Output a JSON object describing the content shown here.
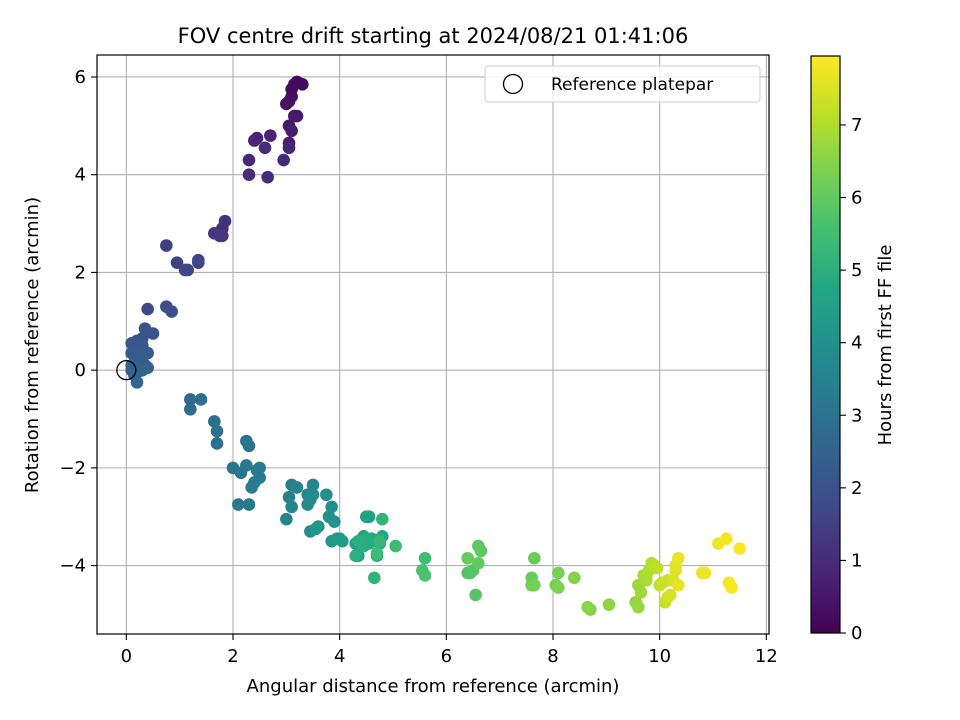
{
  "chart_data": {
    "type": "scatter",
    "title": "FOV centre drift starting at 2024/08/21 01:41:06",
    "xlabel": "Angular distance from reference (arcmin)",
    "ylabel": "Rotation from reference (arcmin)",
    "xlim": [
      -0.55,
      12.05
    ],
    "ylim": [
      -5.4,
      6.45
    ],
    "xticks": [
      0,
      2,
      4,
      6,
      8,
      10,
      12
    ],
    "yticks": [
      -4,
      -2,
      0,
      2,
      4,
      6
    ],
    "xtick_labels": [
      "0",
      "2",
      "4",
      "6",
      "8",
      "10",
      "12"
    ],
    "ytick_labels": [
      "−4",
      "−2",
      "0",
      "2",
      "4",
      "6"
    ],
    "grid": true,
    "legend": {
      "position": "top-right",
      "entries": [
        "Reference platepar"
      ]
    },
    "reference_point": {
      "x": 0,
      "y": 0,
      "marker": "open-circle"
    },
    "colorbar": {
      "label": "Hours from first FF file",
      "range": [
        0,
        7.95
      ],
      "ticks": [
        0,
        1,
        2,
        3,
        4,
        5,
        6,
        7
      ],
      "tick_labels": [
        "0",
        "1",
        "2",
        "3",
        "4",
        "5",
        "6",
        "7"
      ],
      "colormap": "viridis"
    },
    "series": [
      {
        "x": [
          3.2,
          3.15,
          3.3,
          3.1,
          3.1,
          3.05,
          3.0,
          3.15,
          3.05,
          3.2,
          3.1,
          3.05,
          2.45,
          2.7,
          2.4,
          3.05,
          2.3,
          2.95,
          2.65,
          2.3,
          2.6,
          1.8,
          1.85,
          1.8,
          1.65,
          1.75,
          0.75,
          0.95,
          1.35,
          1.35,
          1.1,
          1.15,
          0.4,
          0.75,
          0.85,
          0.5,
          0.35,
          0.2,
          0.3,
          0.1,
          0.15,
          0.3,
          0.1,
          0.2,
          0.15,
          0.3,
          0.4,
          0.35,
          0.15,
          0.25,
          0.2,
          0.3,
          0.1,
          0.2,
          0.4,
          0.1,
          0.3,
          0.15,
          0.2,
          1.2,
          1.2,
          1.4,
          1.65,
          1.7,
          1.7,
          2.25,
          2.3,
          2.0,
          2.15,
          2.1,
          2.3,
          2.25,
          2.5,
          2.45,
          2.5,
          2.4,
          2.35,
          3.05,
          3.1,
          3.2,
          3.0,
          3.1,
          3.4,
          3.5,
          3.45,
          3.5,
          3.4,
          3.45,
          3.75,
          3.85,
          3.8,
          3.9,
          3.6,
          3.55,
          3.85,
          4.0,
          3.95,
          4.05,
          4.3,
          4.35,
          4.5,
          4.55,
          4.45,
          4.6,
          4.75,
          4.8,
          4.7,
          4.55,
          4.5,
          4.45,
          4.35,
          4.3,
          4.7,
          4.65,
          4.8,
          4.75,
          5.05,
          4.7,
          5.6,
          5.55,
          5.6,
          6.45,
          6.4,
          6.5,
          6.55,
          6.6,
          6.65,
          6.6,
          6.4,
          7.6,
          7.65,
          7.6,
          7.65,
          8.1,
          8.05,
          8.1,
          8.4,
          8.7,
          8.65,
          9.05,
          9.55,
          9.6,
          9.6,
          9.65,
          9.7,
          9.75,
          9.75,
          9.8,
          9.85,
          9.9,
          9.95,
          10.0,
          10.05,
          10.1,
          10.15,
          10.15,
          10.2,
          10.25,
          10.3,
          10.3,
          10.35,
          10.35,
          10.8,
          10.85,
          11.1,
          11.25,
          11.3,
          11.35,
          11.5
        ],
        "y": [
          5.9,
          5.85,
          5.85,
          5.75,
          5.6,
          5.5,
          5.45,
          5.2,
          5.0,
          5.2,
          4.9,
          4.65,
          4.75,
          4.8,
          4.7,
          4.55,
          4.3,
          4.3,
          3.95,
          4.0,
          4.55,
          2.9,
          3.05,
          2.75,
          2.8,
          2.75,
          2.55,
          2.2,
          2.25,
          2.2,
          2.05,
          2.05,
          1.25,
          1.3,
          1.2,
          0.75,
          0.85,
          0.6,
          0.65,
          0.55,
          0.45,
          0.5,
          0.35,
          0.35,
          0.3,
          0.25,
          0.35,
          0.1,
          0.05,
          0.1,
          0.05,
          0.0,
          0.0,
          -0.05,
          0.05,
          0.1,
          0.0,
          -0.1,
          -0.25,
          -0.6,
          -0.8,
          -0.6,
          -1.05,
          -1.25,
          -1.5,
          -1.45,
          -1.55,
          -2.0,
          -2.1,
          -2.75,
          -2.75,
          -1.95,
          -2.0,
          -2.05,
          -2.2,
          -2.3,
          -2.4,
          -2.6,
          -2.35,
          -2.4,
          -3.05,
          -2.8,
          -2.55,
          -2.35,
          -2.65,
          -2.55,
          -2.75,
          -3.3,
          -2.55,
          -2.8,
          -3.0,
          -3.1,
          -3.2,
          -3.25,
          -3.5,
          -3.45,
          -3.45,
          -3.5,
          -3.55,
          -3.8,
          -3.0,
          -3.0,
          -3.4,
          -3.45,
          -3.55,
          -3.4,
          -3.5,
          -3.55,
          -3.45,
          -3.6,
          -3.5,
          -3.8,
          -3.8,
          -4.25,
          -3.05,
          -3.5,
          -3.6,
          -3.75,
          -3.85,
          -4.1,
          -4.2,
          -4.15,
          -4.15,
          -4.1,
          -4.6,
          -3.6,
          -3.7,
          -3.95,
          -3.85,
          -4.25,
          -3.85,
          -4.4,
          -4.4,
          -4.15,
          -4.4,
          -4.45,
          -4.25,
          -4.9,
          -4.85,
          -4.8,
          -4.75,
          -4.85,
          -4.4,
          -4.55,
          -4.2,
          -4.3,
          -4.25,
          -4.1,
          -3.95,
          -4.0,
          -4.05,
          -4.4,
          -4.35,
          -4.75,
          -4.3,
          -4.65,
          -4.6,
          -4.3,
          -4.1,
          -4.0,
          -3.85,
          -4.4,
          -4.15,
          -4.15,
          -3.55,
          -3.45,
          -4.35,
          -4.45,
          -3.65
        ],
        "t": [
          0.1,
          0.15,
          0.2,
          0.25,
          0.3,
          0.35,
          0.4,
          0.45,
          0.5,
          0.55,
          0.6,
          0.65,
          0.7,
          0.75,
          0.8,
          0.85,
          0.9,
          0.95,
          1.0,
          1.05,
          1.05,
          1.1,
          1.15,
          1.2,
          1.25,
          1.3,
          1.45,
          1.5,
          1.55,
          1.6,
          1.65,
          1.7,
          1.8,
          1.85,
          1.9,
          2.0,
          2.02,
          2.05,
          2.08,
          2.1,
          2.12,
          2.15,
          2.18,
          2.2,
          2.22,
          2.25,
          2.28,
          2.3,
          2.32,
          2.35,
          2.38,
          2.4,
          2.42,
          2.45,
          2.48,
          2.5,
          2.52,
          2.55,
          2.6,
          2.75,
          2.8,
          2.85,
          2.9,
          2.95,
          3.0,
          3.05,
          3.05,
          3.1,
          3.1,
          3.15,
          3.15,
          3.2,
          3.2,
          3.25,
          3.25,
          3.3,
          3.3,
          3.4,
          3.45,
          3.5,
          3.5,
          3.55,
          3.6,
          3.65,
          3.7,
          3.75,
          3.8,
          3.85,
          3.9,
          3.95,
          4.0,
          4.05,
          4.1,
          4.15,
          4.2,
          4.25,
          4.3,
          4.35,
          4.4,
          4.45,
          4.5,
          4.55,
          4.6,
          4.65,
          4.7,
          4.75,
          4.8,
          4.85,
          4.9,
          4.95,
          5.0,
          5.05,
          5.1,
          5.15,
          5.2,
          5.25,
          5.35,
          5.45,
          5.5,
          5.6,
          5.65,
          5.7,
          5.75,
          5.8,
          5.85,
          5.9,
          5.95,
          6.0,
          6.05,
          6.1,
          6.15,
          6.2,
          6.25,
          6.3,
          6.35,
          6.4,
          6.45,
          6.5,
          6.55,
          6.6,
          6.65,
          6.7,
          6.75,
          6.8,
          6.85,
          6.9,
          6.95,
          7.0,
          7.05,
          7.1,
          7.15,
          7.2,
          7.25,
          7.3,
          7.35,
          7.4,
          7.45,
          7.5,
          7.55,
          7.6,
          7.65,
          7.7,
          7.75,
          7.78,
          7.8,
          7.85,
          7.88,
          7.9,
          7.95
        ]
      }
    ]
  }
}
